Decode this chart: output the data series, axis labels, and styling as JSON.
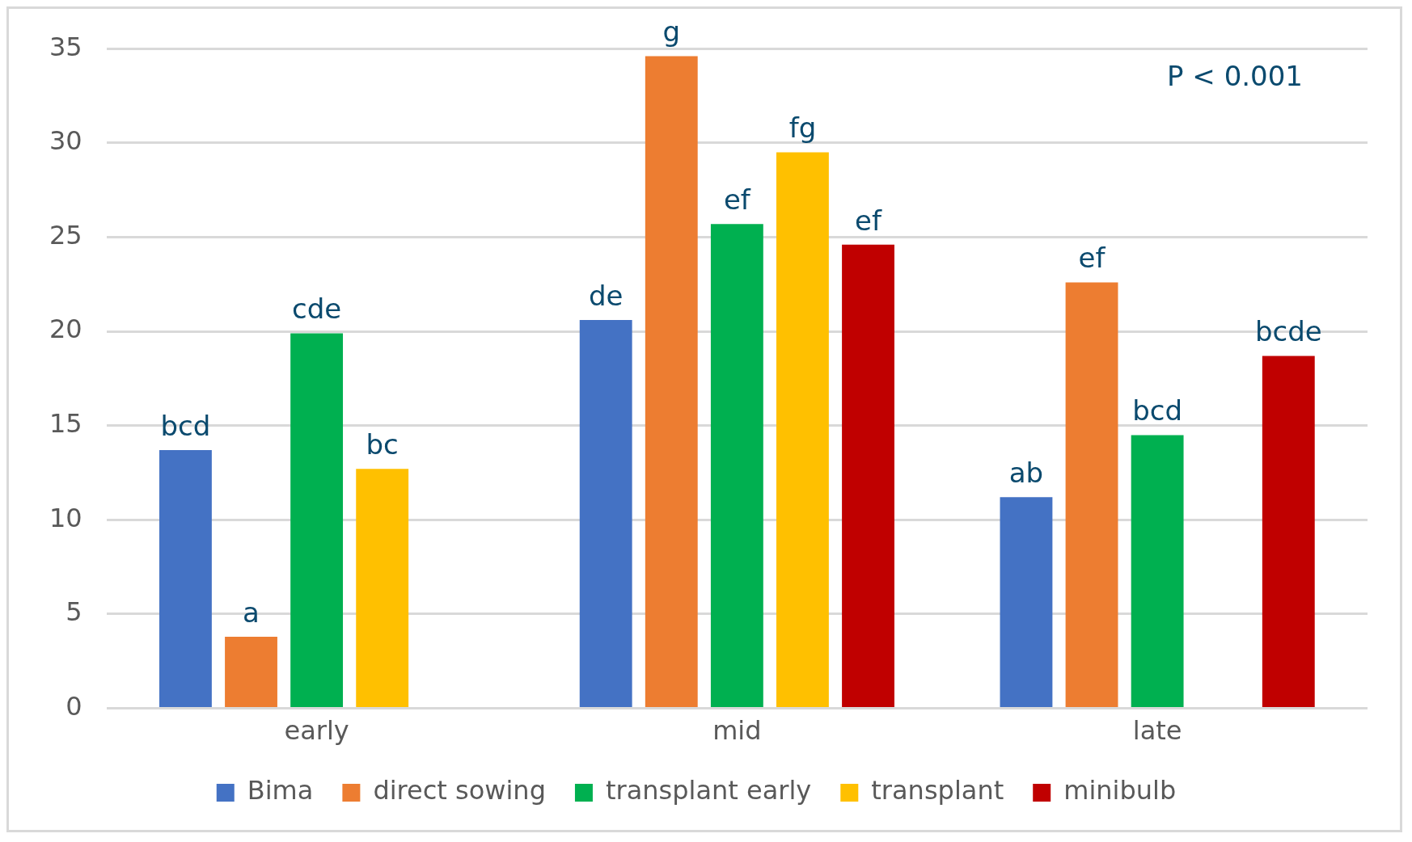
{
  "chart_data": {
    "type": "bar",
    "categories": [
      "early",
      "mid",
      "late"
    ],
    "series": [
      {
        "name": "Bima",
        "color": "#4472c4",
        "values": [
          13.7,
          20.6,
          11.2
        ],
        "value_labels": [
          "bcd",
          "de",
          "ab"
        ]
      },
      {
        "name": "direct sowing",
        "color": "#ed7d31",
        "values": [
          3.8,
          34.6,
          22.6
        ],
        "value_labels": [
          "a",
          "g",
          "ef"
        ]
      },
      {
        "name": "transplant early",
        "color": "#00b050",
        "values": [
          19.9,
          25.7,
          14.5
        ],
        "value_labels": [
          "cde",
          "ef",
          "bcd"
        ]
      },
      {
        "name": "transplant",
        "color": "#ffc000",
        "values": [
          12.7,
          29.5,
          null
        ],
        "value_labels": [
          "bc",
          "fg",
          null
        ]
      },
      {
        "name": "minibulb",
        "color": "#c00000",
        "values": [
          null,
          24.6,
          18.7
        ],
        "value_labels": [
          null,
          "ef",
          "bcde"
        ]
      }
    ],
    "ylim": [
      0,
      35
    ],
    "yticks": [
      0,
      5,
      10,
      15,
      20,
      25,
      30,
      35
    ],
    "grid": "y",
    "legend": "bottom",
    "annotations": [
      "P < 0.001"
    ]
  }
}
